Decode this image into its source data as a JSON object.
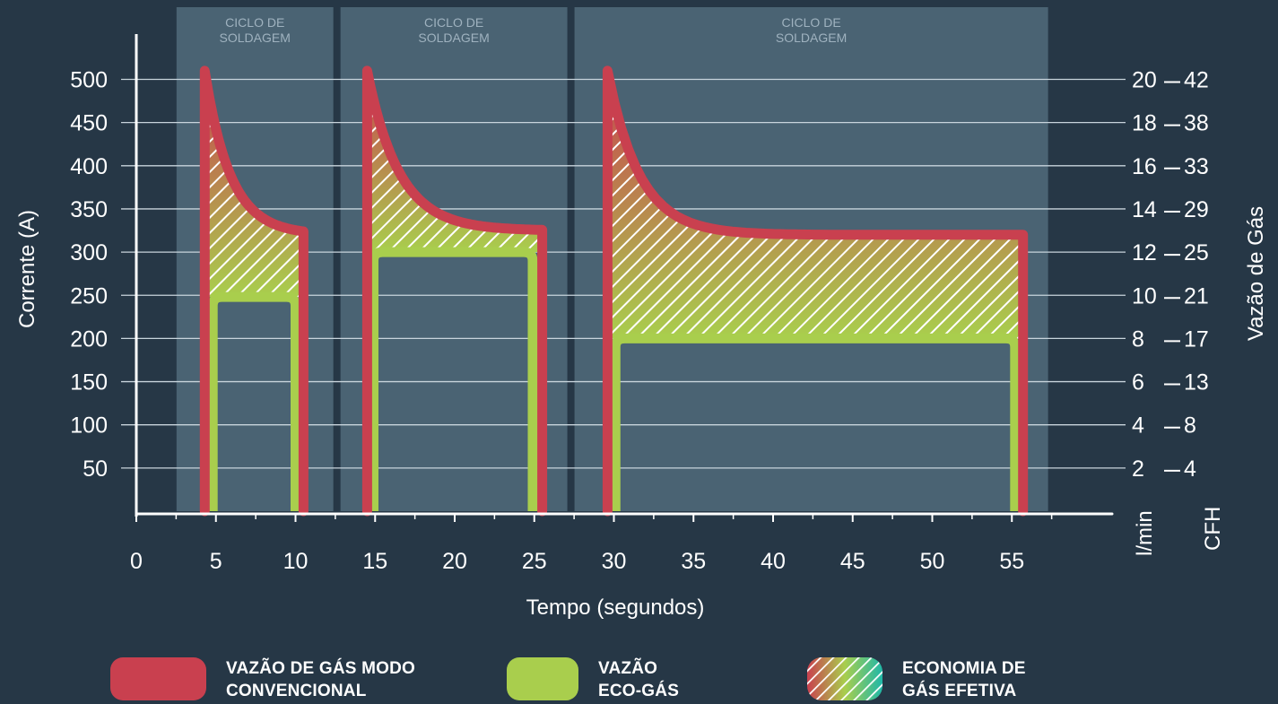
{
  "chart_data": {
    "type": "area",
    "xlabel": "Tempo (segundos)",
    "ylabel": "Corrente (A)",
    "ylabel_right": "Vazão de Gás",
    "xlim": [
      0,
      60
    ],
    "ylim": [
      0,
      500
    ],
    "x_ticks": [
      0,
      5,
      10,
      15,
      20,
      25,
      30,
      35,
      40,
      45,
      50,
      55
    ],
    "y_ticks": [
      50,
      100,
      150,
      200,
      250,
      300,
      350,
      400,
      450,
      500
    ],
    "right_axis_lmin": {
      "unit": "l/min",
      "ticks": [
        {
          "y": 50,
          "label": "2"
        },
        {
          "y": 100,
          "label": "4"
        },
        {
          "y": 150,
          "label": "6"
        },
        {
          "y": 200,
          "label": "8"
        },
        {
          "y": 250,
          "label": "10"
        },
        {
          "y": 300,
          "label": "12"
        },
        {
          "y": 350,
          "label": "14"
        },
        {
          "y": 400,
          "label": "16"
        },
        {
          "y": 450,
          "label": "18"
        },
        {
          "y": 500,
          "label": "20"
        }
      ]
    },
    "right_axis_cfh": {
      "unit": "CFH",
      "ticks": [
        {
          "y": 50,
          "label": "4"
        },
        {
          "y": 100,
          "label": "8"
        },
        {
          "y": 150,
          "label": "13"
        },
        {
          "y": 200,
          "label": "17"
        },
        {
          "y": 250,
          "label": "21"
        },
        {
          "y": 300,
          "label": "25"
        },
        {
          "y": 350,
          "label": "29"
        },
        {
          "y": 400,
          "label": "33"
        },
        {
          "y": 450,
          "label": "38"
        },
        {
          "y": 500,
          "label": "42"
        }
      ]
    },
    "grid": true,
    "cycles": [
      {
        "label": "CICLO DE\nSOLDAGEM",
        "start": 2.3,
        "end": 12.6
      },
      {
        "label": "CICLO DE\nSOLDAGEM",
        "start": 12.6,
        "end": 27.3
      },
      {
        "label": "CICLO DE\nSOLDAGEM",
        "start": 27.3,
        "end": 57.5
      }
    ],
    "series": [
      {
        "name": "VAZÃO DE GÁS MODO CONVENCIONAL",
        "color": "#c9404f",
        "segments": [
          {
            "start": 4.3,
            "end": 10.5,
            "peak": 510,
            "plateau": 320,
            "decay": 1.6
          },
          {
            "start": 14.5,
            "end": 25.5,
            "peak": 510,
            "plateau": 325,
            "decay": 2.0
          },
          {
            "start": 29.6,
            "end": 55.7,
            "peak": 510,
            "plateau": 320,
            "decay": 2.0
          }
        ]
      },
      {
        "name": "VAZÃO ECO-GÁS",
        "color": "#a9ce4d",
        "segments": [
          {
            "start": 4.8,
            "end": 10.0,
            "level": 248
          },
          {
            "start": 14.9,
            "end": 24.9,
            "level": 300
          },
          {
            "start": 30.1,
            "end": 55.2,
            "level": 200
          }
        ]
      }
    ],
    "savings_fill": {
      "name": "ECONOMIA DE GÁS EFETIVA",
      "colors": [
        "#c9404f",
        "#a9ce4d",
        "#1fb8a8"
      ]
    }
  },
  "legend": {
    "items": [
      {
        "label": "VAZÃO DE GÁS MODO\nCONVENCIONAL",
        "color": "#c9404f"
      },
      {
        "label": "VAZÃO\nECO-GÁS",
        "color": "#a9ce4d"
      },
      {
        "label": "ECONOMIA DE\nGÁS EFETIVA",
        "color": "hatch"
      }
    ]
  }
}
